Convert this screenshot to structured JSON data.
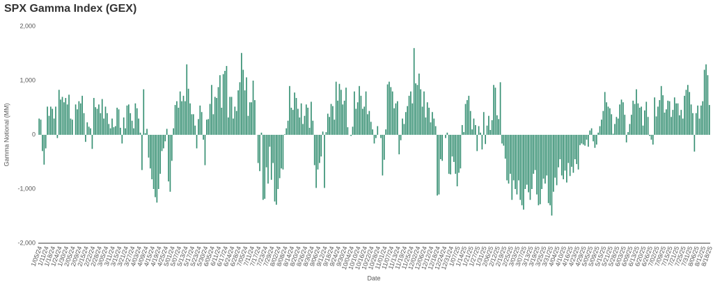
{
  "chart_data": {
    "type": "bar",
    "title": "SPX Gamma Index (GEX)",
    "x_label": "Date",
    "y_label": "Gamma Notional (MM)",
    "color": "#358f72",
    "grid": false,
    "ylim": [
      -2000,
      2000
    ],
    "yticks": [
      {
        "value": -2000,
        "label": "-2,000"
      },
      {
        "value": -1000,
        "label": "-1,000"
      },
      0,
      {
        "value": 1000,
        "label": "1,000"
      },
      {
        "value": 2000,
        "label": "2,000"
      }
    ],
    "categories": [
      "1/05/24",
      null,
      null,
      null,
      "1/11/24",
      null,
      null,
      null,
      "1/18/24",
      null,
      null,
      null,
      "1/24/24",
      null,
      null,
      null,
      "1/30/24",
      null,
      null,
      null,
      "2/05/24",
      null,
      null,
      null,
      "2/09/24",
      null,
      null,
      null,
      "2/15/24",
      null,
      null,
      null,
      "2/22/24",
      null,
      null,
      null,
      "2/28/24",
      null,
      null,
      null,
      "3/05/24",
      null,
      null,
      null,
      "3/11/24",
      null,
      null,
      null,
      "3/15/24",
      null,
      null,
      null,
      "3/21/24",
      null,
      null,
      null,
      "3/27/24",
      null,
      null,
      null,
      "4/03/24",
      null,
      null,
      null,
      "4/09/24",
      null,
      null,
      null,
      "4/15/24",
      null,
      null,
      null,
      "4/19/24",
      null,
      null,
      null,
      "4/25/24",
      null,
      null,
      null,
      "5/01/24",
      null,
      null,
      null,
      "5/07/24",
      null,
      null,
      null,
      "5/13/24",
      null,
      null,
      null,
      "5/17/24",
      null,
      null,
      null,
      "5/23/24",
      null,
      null,
      null,
      "5/30/24",
      null,
      null,
      null,
      "6/05/24",
      null,
      null,
      null,
      "6/11/24",
      null,
      null,
      null,
      "6/17/24",
      null,
      null,
      null,
      "6/24/24",
      null,
      null,
      null,
      "6/28/24",
      null,
      null,
      null,
      "7/05/24",
      null,
      null,
      null,
      "7/11/24",
      null,
      null,
      null,
      "7/17/24",
      null,
      null,
      null,
      "7/23/24",
      null,
      null,
      null,
      "7/29/24",
      null,
      null,
      null,
      "8/02/24",
      null,
      null,
      null,
      "8/08/24",
      null,
      null,
      null,
      "8/14/24",
      null,
      null,
      null,
      "8/20/24",
      null,
      null,
      null,
      "8/26/24",
      null,
      null,
      null,
      "8/30/24",
      null,
      null,
      null,
      "9/06/24",
      null,
      null,
      null,
      "9/12/24",
      null,
      null,
      null,
      "9/18/24",
      null,
      null,
      null,
      "9/24/24",
      null,
      null,
      null,
      "9/30/24",
      null,
      null,
      null,
      "10/04/24",
      null,
      null,
      null,
      "10/10/24",
      null,
      null,
      null,
      "10/16/24",
      null,
      null,
      null,
      "10/22/24",
      null,
      null,
      null,
      "10/28/24",
      null,
      null,
      null,
      "11/01/24",
      null,
      null,
      null,
      "11/07/24",
      null,
      null,
      null,
      "11/13/24",
      null,
      null,
      null,
      "11/19/24",
      null,
      null,
      null,
      "11/25/24",
      null,
      null,
      null,
      "12/02/24",
      null,
      null,
      null,
      "12/06/24",
      null,
      null,
      null,
      "12/12/24",
      null,
      null,
      null,
      "12/18/24",
      null,
      null,
      null,
      "12/24/24",
      null,
      null,
      null,
      "12/31/24",
      null,
      null,
      null,
      "1/07/25",
      null,
      null,
      null,
      "1/14/25",
      null,
      null,
      null,
      "1/21/25",
      null,
      null,
      null,
      "1/27/25",
      null,
      null,
      null,
      "1/31/25",
      null,
      null,
      null,
      "2/06/25",
      null,
      null,
      null,
      "2/12/25",
      null,
      null,
      null,
      "2/19/25",
      null,
      null,
      null,
      "2/25/25",
      null,
      null,
      null,
      "3/03/25",
      null,
      null,
      null,
      "3/07/25",
      null,
      null,
      null,
      "3/13/25",
      null,
      null,
      null,
      "3/19/25",
      null,
      null,
      null,
      "3/25/25",
      null,
      null,
      null,
      "3/31/25",
      null,
      null,
      null,
      "4/04/25",
      null,
      null,
      null,
      "4/10/25",
      null,
      null,
      null,
      "4/16/25",
      null,
      null,
      null,
      "4/23/25",
      null,
      null,
      null,
      "4/29/25",
      null,
      null,
      null,
      "5/05/25",
      null,
      null,
      null,
      "5/09/25",
      null,
      null,
      null,
      "5/15/25",
      null,
      null,
      null,
      "5/21/25",
      null,
      null,
      null,
      "5/28/25",
      null,
      null,
      null,
      "6/03/25",
      null,
      null,
      null,
      "6/09/25",
      null,
      null,
      null,
      "6/13/25",
      null,
      null,
      null,
      "6/20/25",
      null,
      null,
      null,
      "6/26/25",
      null,
      null,
      null,
      "7/02/25",
      null,
      null,
      null,
      "7/09/25",
      null,
      null,
      null,
      "7/15/25",
      null,
      null,
      null,
      "7/21/25",
      null,
      null,
      null,
      "7/25/25",
      null,
      null,
      null,
      "7/31/25",
      null,
      null,
      null,
      "8/06/25",
      null,
      null,
      null,
      "8/12/25",
      null,
      null,
      null,
      "8/18/25"
    ],
    "values": [
      300,
      280,
      -300,
      -550,
      -250,
      520,
      350,
      520,
      480,
      300,
      520,
      -60,
      830,
      650,
      700,
      600,
      680,
      560,
      740,
      300,
      280,
      0,
      560,
      470,
      620,
      580,
      720,
      400,
      -130,
      230,
      150,
      120,
      -260,
      680,
      510,
      480,
      560,
      400,
      660,
      300,
      520,
      400,
      200,
      120,
      300,
      140,
      160,
      500,
      470,
      130,
      -160,
      320,
      120,
      540,
      560,
      400,
      260,
      120,
      580,
      490,
      300,
      40,
      -650,
      840,
      30,
      110,
      -420,
      -620,
      -820,
      -1000,
      -1150,
      -1250,
      -1000,
      -720,
      -300,
      -250,
      -120,
      110,
      -860,
      -1050,
      -480,
      120,
      550,
      620,
      500,
      800,
      620,
      720,
      620,
      1300,
      850,
      580,
      380,
      380,
      170,
      -250,
      290,
      540,
      420,
      -90,
      -560,
      280,
      290,
      570,
      920,
      380,
      700,
      680,
      880,
      1100,
      500,
      1120,
      1180,
      1270,
      320,
      700,
      700,
      300,
      520,
      440,
      820,
      970,
      1510,
      1200,
      820,
      1060,
      350,
      600,
      600,
      1000,
      640,
      0,
      -520,
      -670,
      40,
      -1200,
      -1180,
      -600,
      -900,
      -220,
      -830,
      -520,
      -1230,
      -1290,
      -1000,
      -800,
      -620,
      -640,
      10,
      120,
      260,
      900,
      500,
      460,
      780,
      680,
      480,
      320,
      580,
      200,
      350,
      560,
      500,
      130,
      610,
      260,
      -560,
      -980,
      -640,
      -520,
      -400,
      60,
      -980,
      50,
      390,
      330,
      570,
      530,
      280,
      980,
      630,
      940,
      830,
      560,
      630,
      870,
      140,
      0,
      -20,
      150,
      800,
      480,
      600,
      900,
      720,
      480,
      520,
      800,
      380,
      440,
      240,
      100,
      -160,
      -60,
      160,
      0,
      -60,
      -750,
      -460,
      100,
      930,
      980,
      880,
      800,
      490,
      580,
      620,
      -360,
      -100,
      300,
      200,
      420,
      530,
      720,
      800,
      580,
      1600,
      950,
      920,
      1130,
      840,
      520,
      800,
      320,
      600,
      500,
      230,
      420,
      300,
      160,
      -1120,
      -1100,
      -450,
      -480,
      0,
      -60,
      40,
      -720,
      -730,
      -400,
      -500,
      -720,
      -950,
      -700,
      -620,
      180,
      50,
      570,
      640,
      720,
      440,
      100,
      300,
      180,
      -300,
      160,
      40,
      -270,
      420,
      -170,
      170,
      350,
      90,
      270,
      920,
      870,
      360,
      290,
      970,
      -160,
      -200,
      -440,
      -840,
      -900,
      -720,
      -1200,
      -840,
      -1000,
      -1100,
      -840,
      -1200,
      -1300,
      -1380,
      -1000,
      -920,
      -1060,
      -1200,
      -1000,
      -720,
      -650,
      -1100,
      -1300,
      -1280,
      -1000,
      -810,
      -900,
      -750,
      -1260,
      -1300,
      -1490,
      -1050,
      -790,
      -930,
      -600,
      -450,
      -750,
      -820,
      -660,
      -880,
      -520,
      -760,
      -590,
      -700,
      -450,
      -540,
      -640,
      -190,
      -160,
      -180,
      -200,
      -90,
      -220,
      80,
      120,
      -120,
      -240,
      -180,
      40,
      160,
      280,
      440,
      790,
      600,
      520,
      490,
      380,
      20,
      200,
      330,
      300,
      560,
      650,
      600,
      370,
      -140,
      50,
      200,
      370,
      630,
      570,
      840,
      580,
      500,
      520,
      170,
      450,
      610,
      330,
      -20,
      -90,
      -180,
      690,
      340,
      520,
      640,
      900,
      730,
      410,
      470,
      630,
      620,
      330,
      460,
      690,
      580,
      580,
      360,
      460,
      300,
      720,
      830,
      920,
      790,
      560,
      400,
      -310,
      400,
      540,
      300,
      540,
      620,
      1200,
      1300,
      1100,
      550
    ]
  }
}
